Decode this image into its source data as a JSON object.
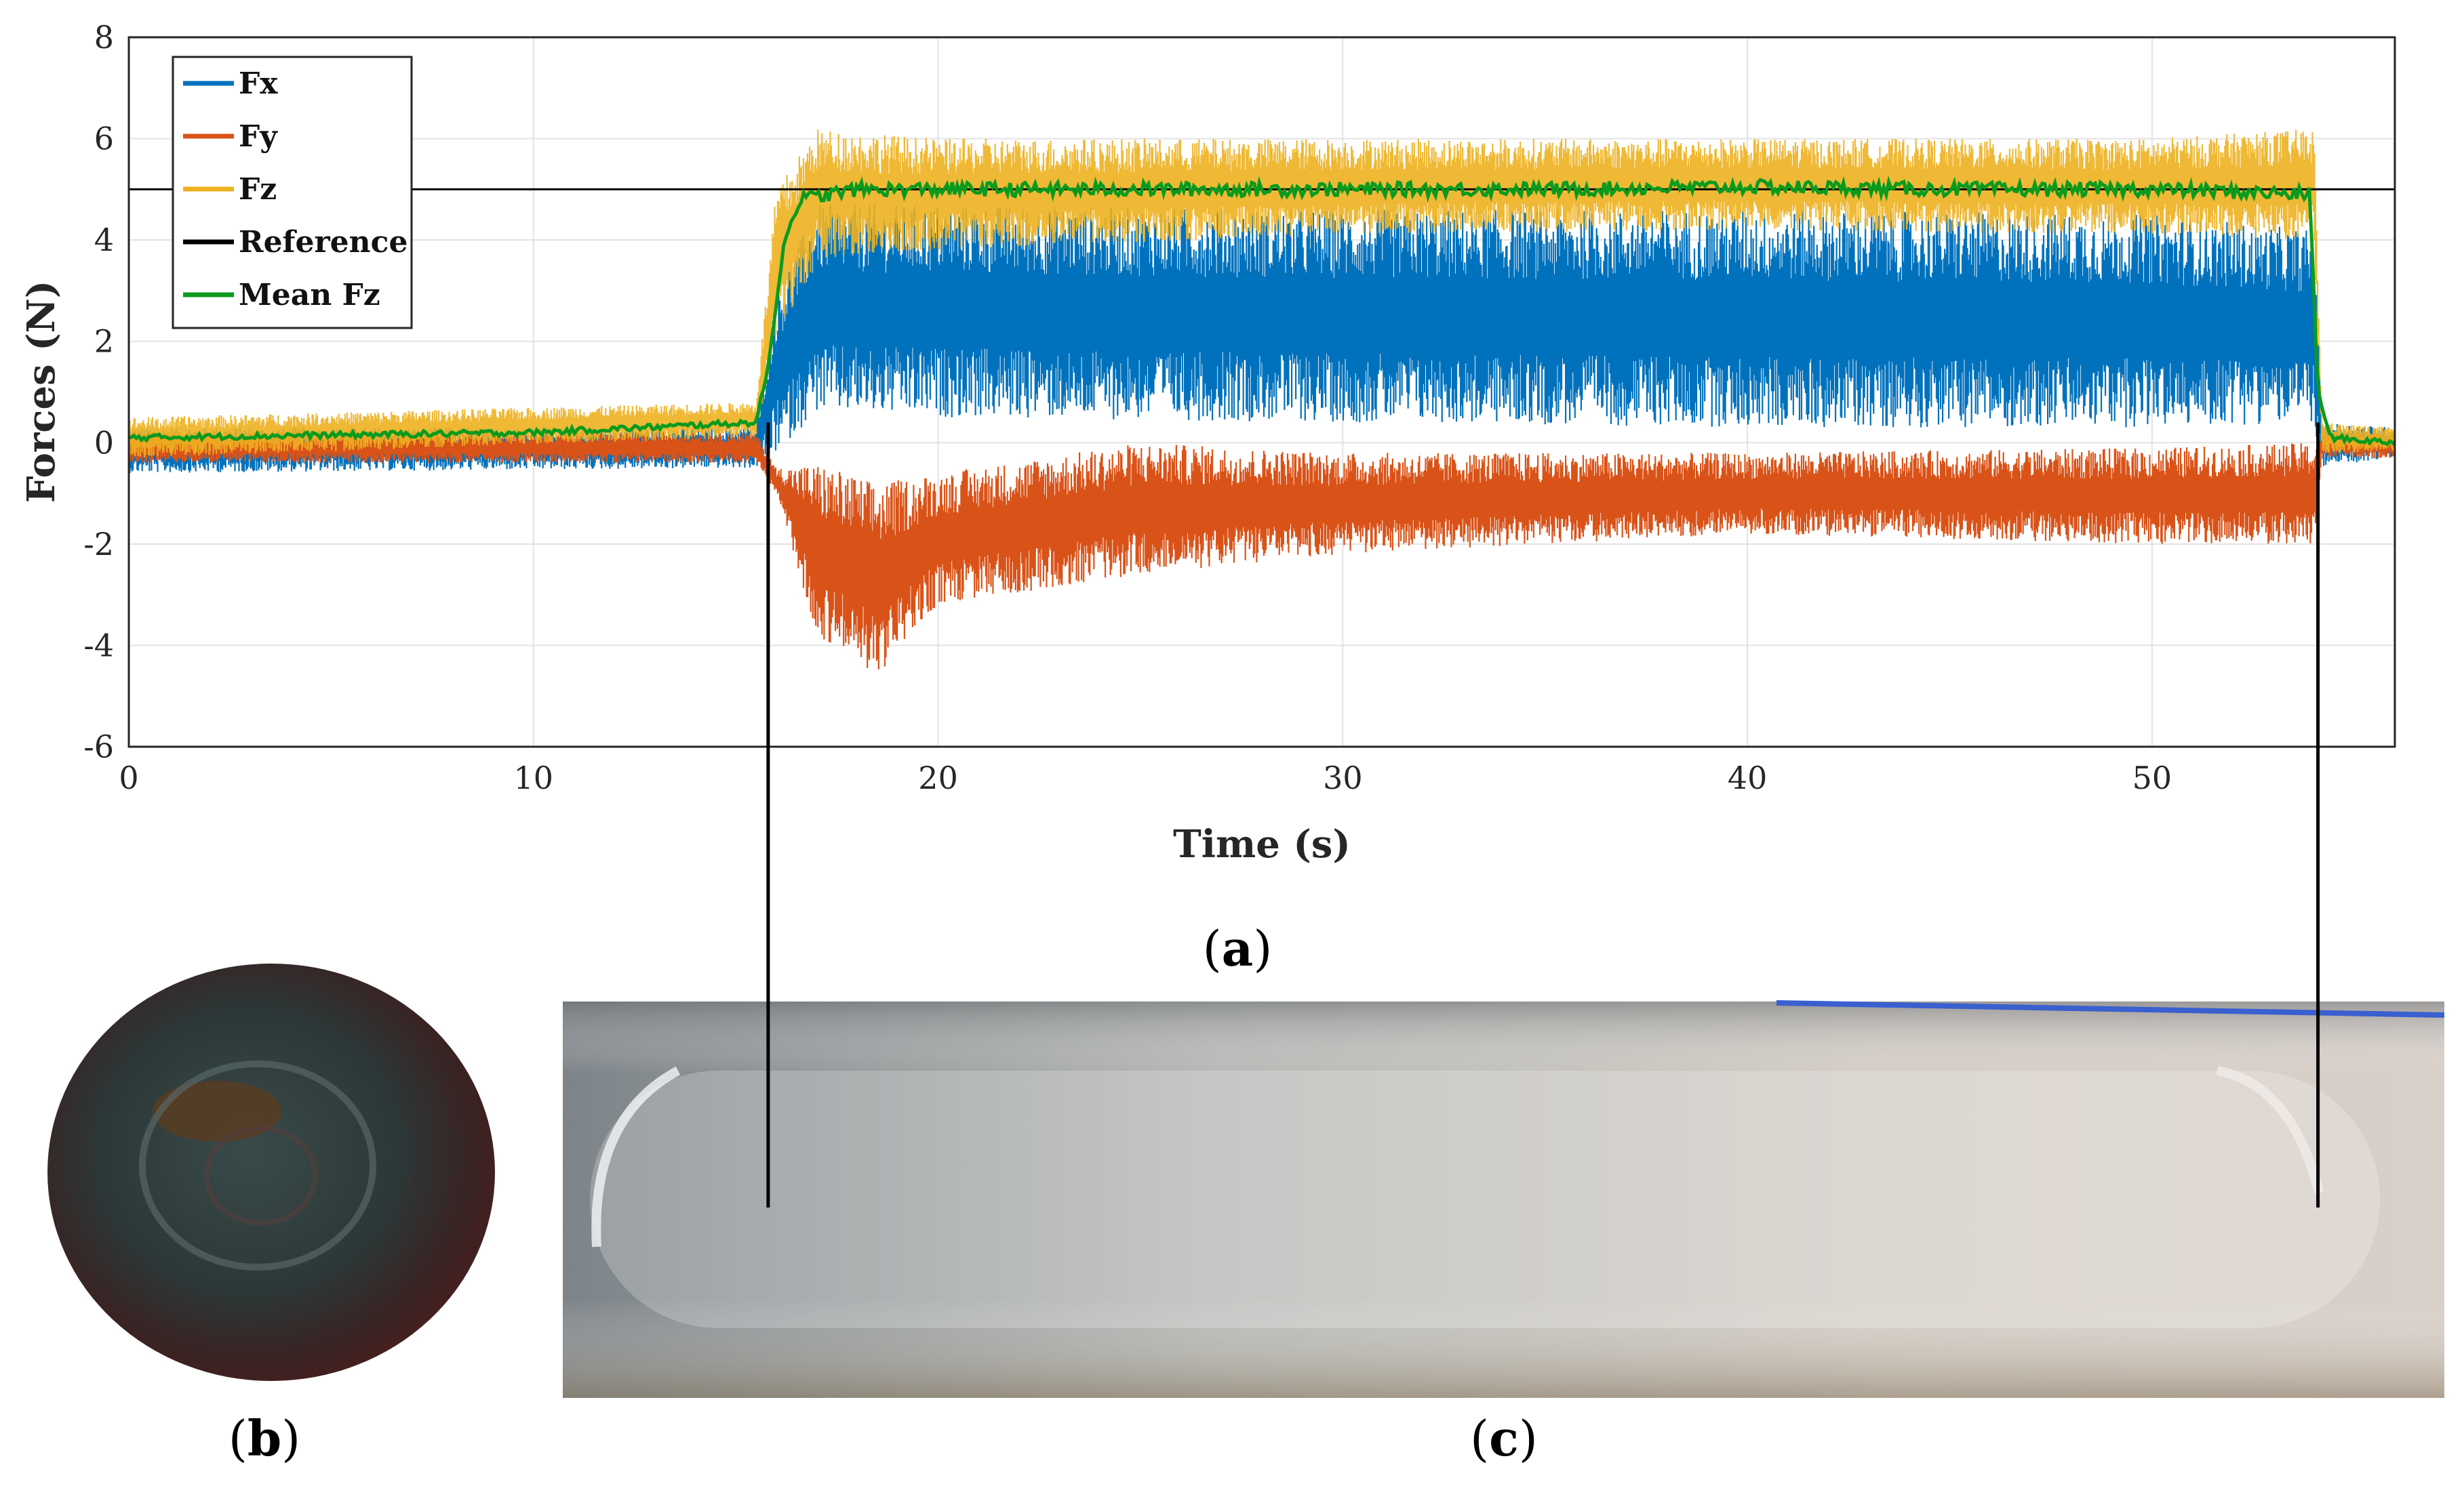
{
  "chart_data": {
    "type": "line",
    "xlabel": "Time (s)",
    "ylabel": "Forces (N)",
    "xlim": [
      0,
      56
    ],
    "ylim": [
      -6,
      8
    ],
    "xticks": [
      "0",
      "10",
      "20",
      "30",
      "40",
      "50"
    ],
    "yticks": [
      "8",
      "6",
      "4",
      "2",
      "0",
      "-2",
      "-4",
      "-6"
    ],
    "grid": true,
    "legend_position": "top-left",
    "legend": [
      "Fx",
      "Fy",
      "Fz",
      "Reference",
      "Mean Fz"
    ],
    "colors": {
      "Fx": "#0072BD",
      "Fy": "#D95319",
      "Fz": "#EDB120",
      "Reference": "#000000",
      "Mean Fz": "#0A9B1E"
    },
    "contact_interval": [
      15.8,
      54.1
    ],
    "series": [
      {
        "name": "Fx",
        "envelope": {
          "x": [
            0,
            15.5,
            16.0,
            17.0,
            20,
            30,
            40,
            50,
            54.0,
            54.2,
            56
          ],
          "low": [
            -0.6,
            -0.5,
            -0.2,
            0.6,
            0.5,
            0.4,
            0.3,
            0.3,
            0.4,
            -0.5,
            -0.3
          ],
          "high": [
            0.3,
            0.3,
            3.0,
            4.7,
            4.7,
            4.6,
            4.6,
            4.5,
            4.2,
            0.4,
            0.3
          ]
        }
      },
      {
        "name": "Fy",
        "envelope": {
          "x": [
            0,
            15.5,
            16.0,
            17.0,
            18.5,
            20,
            25,
            30,
            40,
            50,
            54.0,
            54.2,
            56
          ],
          "low": [
            -0.4,
            -0.4,
            -1.0,
            -3.8,
            -4.6,
            -3.2,
            -2.6,
            -2.2,
            -1.8,
            -2.0,
            -2.0,
            -0.3,
            -0.3
          ],
          "high": [
            0.2,
            0.2,
            -0.5,
            -0.4,
            -0.8,
            -0.6,
            0.0,
            -0.2,
            -0.2,
            -0.1,
            0.0,
            0.2,
            0.2
          ]
        }
      },
      {
        "name": "Fz",
        "envelope": {
          "x": [
            0,
            15.5,
            16.0,
            17.0,
            20,
            30,
            40,
            50,
            54.0,
            54.2,
            56
          ],
          "low": [
            -0.3,
            0.1,
            2.0,
            3.6,
            3.8,
            4.1,
            4.2,
            4.1,
            4.0,
            -0.2,
            -0.2
          ],
          "high": [
            0.5,
            0.8,
            5.0,
            6.2,
            6.0,
            6.0,
            6.0,
            6.0,
            6.2,
            0.4,
            0.3
          ]
        }
      },
      {
        "name": "Reference",
        "x": [
          0,
          56
        ],
        "values": [
          5,
          5
        ]
      },
      {
        "name": "Mean Fz",
        "x": [
          0,
          5,
          10,
          15.5,
          15.8,
          16.2,
          16.6,
          18,
          20,
          25,
          30,
          35,
          40,
          45,
          50,
          53.9,
          54.1,
          54.4,
          56
        ],
        "values": [
          0.1,
          0.15,
          0.2,
          0.4,
          1.5,
          4.0,
          4.8,
          5.0,
          5.0,
          5.0,
          5.0,
          5.0,
          5.05,
          5.0,
          5.0,
          4.9,
          1.0,
          0.1,
          0.0
        ]
      }
    ]
  },
  "panel_labels": {
    "a": "a",
    "b": "b",
    "c": "c"
  }
}
